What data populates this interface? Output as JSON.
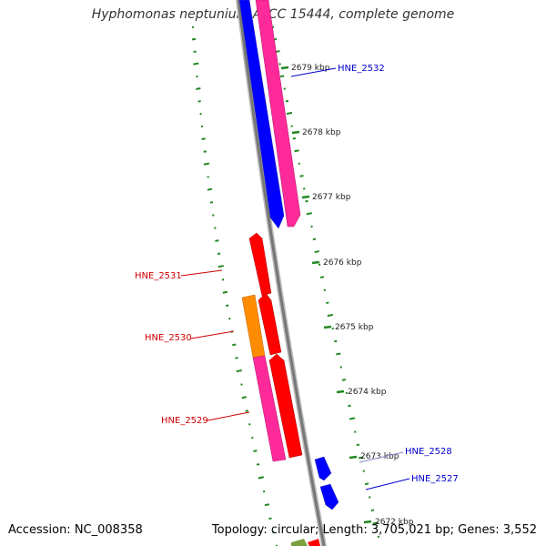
{
  "title": "Hyphomonas neptunium ATCC 15444, complete genome",
  "footer": {
    "accession": "Accession: NC_008358",
    "topology": "Topology: circular; Length: 3,705,021 bp; Genes: 3,552"
  },
  "ticks": [
    {
      "label": "2679 kbp"
    },
    {
      "label": "2678 kbp"
    },
    {
      "label": "2677 kbp"
    },
    {
      "label": "2676 kbp"
    },
    {
      "label": "2675 kbp"
    },
    {
      "label": "2674 kbp"
    },
    {
      "label": "2673 kbp"
    },
    {
      "label": "2672 kbp"
    }
  ],
  "genes": [
    {
      "name": "HNE_2532",
      "strand": "plus",
      "color": "#0000cc"
    },
    {
      "name": "HNE_2531",
      "strand": "minus",
      "color": "#cc0000"
    },
    {
      "name": "HNE_2530",
      "strand": "minus",
      "color": "#cc0000"
    },
    {
      "name": "HNE_2529",
      "strand": "minus",
      "color": "#cc0000"
    },
    {
      "name": "HNE_2528",
      "strand": "plus",
      "color": "#0000cc"
    },
    {
      "name": "HNE_2527",
      "strand": "plus",
      "color": "#0000cc"
    }
  ],
  "colors": {
    "backbone": "#888888",
    "gc_dots": "#228822",
    "feature_blue": "#0000ff",
    "feature_pink": "#ff2a9a",
    "feature_red": "#ff0000",
    "feature_orange": "#ff8c00",
    "feature_green": "#7aa040"
  }
}
